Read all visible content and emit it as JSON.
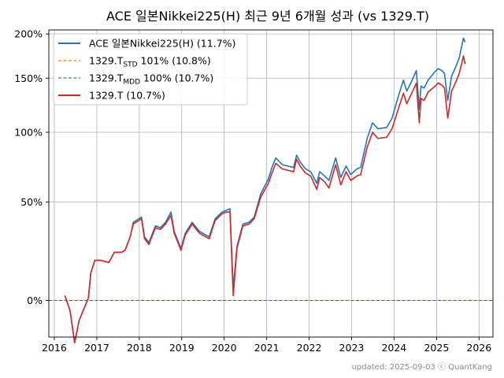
{
  "chart_data": {
    "type": "line",
    "title": "ACE 일본Nikkei225(H) 최근 9년 6개월 성과 (vs 1329.T)",
    "footer": "updated: 2025-09-03 ⓒ QuantKang",
    "y_scale": "log(1+r)",
    "ylim": [
      -0.14,
      2.05
    ],
    "xlim": [
      "2015-11-15",
      "2026-05-01"
    ],
    "y_ticks": [
      {
        "value": 0,
        "label": "0%"
      },
      {
        "value": 0.5,
        "label": "50%"
      },
      {
        "value": 1.0,
        "label": "100%"
      },
      {
        "value": 1.5,
        "label": "150%"
      },
      {
        "value": 2.0,
        "label": "200%"
      }
    ],
    "x_ticks": [
      {
        "value": "2016-01-01",
        "label": "2016"
      },
      {
        "value": "2017-01-01",
        "label": "2017"
      },
      {
        "value": "2018-01-01",
        "label": "2018"
      },
      {
        "value": "2019-01-01",
        "label": "2019"
      },
      {
        "value": "2020-01-01",
        "label": "2020"
      },
      {
        "value": "2021-01-01",
        "label": "2021"
      },
      {
        "value": "2022-01-01",
        "label": "2022"
      },
      {
        "value": "2023-01-01",
        "label": "2023"
      },
      {
        "value": "2024-01-01",
        "label": "2024"
      },
      {
        "value": "2025-01-01",
        "label": "2025"
      },
      {
        "value": "2026-01-01",
        "label": "2026"
      }
    ],
    "grid": true,
    "reference_line": {
      "value": 0,
      "color": "#d62728",
      "style": "dashed"
    },
    "legend_position": "top-left",
    "series": [
      {
        "name": "ACE 일본Nikkei225(H) (11.7%)",
        "color": "#1f77b4",
        "style": "solid",
        "x": [
          "2016-04-01",
          "2016-05-15",
          "2016-06-24",
          "2016-08-01",
          "2016-09-15",
          "2016-10-20",
          "2016-11-10",
          "2016-12-15",
          "2017-02-01",
          "2017-04-15",
          "2017-06-01",
          "2017-08-01",
          "2017-09-01",
          "2017-10-15",
          "2017-11-10",
          "2018-01-20",
          "2018-02-15",
          "2018-03-25",
          "2018-05-20",
          "2018-07-01",
          "2018-08-15",
          "2018-10-01",
          "2018-10-28",
          "2018-12-25",
          "2019-02-01",
          "2019-04-01",
          "2019-06-01",
          "2019-08-25",
          "2019-10-15",
          "2019-12-15",
          "2020-01-20",
          "2020-02-20",
          "2020-03-19",
          "2020-04-20",
          "2020-06-10",
          "2020-08-01",
          "2020-09-15",
          "2020-11-10",
          "2021-01-15",
          "2021-02-15",
          "2021-03-20",
          "2021-05-15",
          "2021-08-20",
          "2021-09-15",
          "2021-10-15",
          "2021-12-01",
          "2022-01-15",
          "2022-03-08",
          "2022-04-01",
          "2022-05-15",
          "2022-06-20",
          "2022-08-17",
          "2022-09-30",
          "2022-11-15",
          "2022-12-25",
          "2023-02-15",
          "2023-03-20",
          "2023-05-15",
          "2023-06-30",
          "2023-08-15",
          "2023-10-30",
          "2023-12-15",
          "2024-02-15",
          "2024-03-22",
          "2024-04-19",
          "2024-06-01",
          "2024-07-11",
          "2024-08-05",
          "2024-08-20",
          "2024-09-15",
          "2024-10-20",
          "2024-12-20",
          "2025-01-15",
          "2025-02-15",
          "2025-03-10",
          "2025-04-07",
          "2025-05-10",
          "2025-06-15",
          "2025-07-15",
          "2025-08-20",
          "2025-09-03"
        ],
        "values": [
          0.02,
          -0.04,
          -0.16,
          -0.08,
          -0.03,
          0.01,
          0.12,
          0.18,
          0.18,
          0.17,
          0.22,
          0.22,
          0.23,
          0.3,
          0.38,
          0.41,
          0.3,
          0.27,
          0.36,
          0.35,
          0.38,
          0.44,
          0.33,
          0.24,
          0.32,
          0.38,
          0.33,
          0.3,
          0.4,
          0.44,
          0.45,
          0.46,
          0.05,
          0.25,
          0.37,
          0.38,
          0.41,
          0.55,
          0.65,
          0.73,
          0.8,
          0.75,
          0.73,
          0.82,
          0.77,
          0.72,
          0.7,
          0.62,
          0.7,
          0.67,
          0.64,
          0.8,
          0.66,
          0.74,
          0.68,
          0.72,
          0.73,
          0.95,
          1.08,
          1.03,
          1.04,
          1.12,
          1.35,
          1.48,
          1.37,
          1.47,
          1.58,
          1.2,
          1.42,
          1.4,
          1.48,
          1.57,
          1.6,
          1.58,
          1.55,
          1.28,
          1.52,
          1.62,
          1.72,
          1.95,
          1.9
        ]
      },
      {
        "name": "1329.T_STD 101% (10.8%)",
        "color": "#ff7f0e",
        "style": "dashed",
        "x": [
          "2016-04-01",
          "2016-05-15",
          "2016-06-24",
          "2016-08-01",
          "2016-09-15",
          "2016-10-20",
          "2016-11-10",
          "2016-12-15",
          "2017-02-01",
          "2017-04-15",
          "2017-06-01",
          "2017-08-01",
          "2017-09-01",
          "2017-10-15",
          "2017-11-10",
          "2018-01-20",
          "2018-02-15",
          "2018-03-25",
          "2018-05-20",
          "2018-07-01",
          "2018-08-15",
          "2018-10-01",
          "2018-10-28",
          "2018-12-25",
          "2019-02-01",
          "2019-04-01",
          "2019-06-01",
          "2019-08-25",
          "2019-10-15",
          "2019-12-15",
          "2020-01-20",
          "2020-02-20",
          "2020-03-19",
          "2020-04-20",
          "2020-06-10",
          "2020-08-01",
          "2020-09-15",
          "2020-11-10",
          "2021-01-15",
          "2021-02-15",
          "2021-03-20",
          "2021-05-15",
          "2021-08-20",
          "2021-09-15",
          "2021-10-15",
          "2021-12-01",
          "2022-01-15",
          "2022-03-08",
          "2022-04-01",
          "2022-05-15",
          "2022-06-20",
          "2022-08-17",
          "2022-09-30",
          "2022-11-15",
          "2022-12-25",
          "2023-02-15",
          "2023-03-20",
          "2023-05-15",
          "2023-06-30",
          "2023-08-15",
          "2023-10-30",
          "2023-12-15",
          "2024-02-15",
          "2024-03-22",
          "2024-04-19",
          "2024-06-01",
          "2024-07-11",
          "2024-08-05",
          "2024-08-20",
          "2024-09-15",
          "2024-10-20",
          "2024-12-20",
          "2025-01-15",
          "2025-02-15",
          "2025-03-10",
          "2025-04-07",
          "2025-05-10",
          "2025-06-15",
          "2025-07-15",
          "2025-08-20",
          "2025-09-03"
        ],
        "values": [
          0.02,
          -0.04,
          -0.16,
          -0.08,
          -0.03,
          0.01,
          0.12,
          0.18,
          0.18,
          0.17,
          0.22,
          0.22,
          0.23,
          0.3,
          0.37,
          0.4,
          0.29,
          0.26,
          0.35,
          0.34,
          0.37,
          0.42,
          0.32,
          0.23,
          0.31,
          0.37,
          0.32,
          0.29,
          0.39,
          0.43,
          0.44,
          0.44,
          0.02,
          0.24,
          0.36,
          0.37,
          0.4,
          0.53,
          0.62,
          0.69,
          0.76,
          0.72,
          0.7,
          0.79,
          0.74,
          0.69,
          0.67,
          0.58,
          0.66,
          0.63,
          0.59,
          0.75,
          0.61,
          0.7,
          0.64,
          0.67,
          0.68,
          0.88,
          1.0,
          0.95,
          0.96,
          1.03,
          1.23,
          1.35,
          1.25,
          1.35,
          1.45,
          1.08,
          1.3,
          1.28,
          1.36,
          1.42,
          1.45,
          1.43,
          1.4,
          1.12,
          1.37,
          1.46,
          1.55,
          1.74,
          1.65
        ]
      },
      {
        "name": "1329.T_MDD 100% (10.7%)",
        "color": "#2ca02c",
        "style": "dashed",
        "x": [
          "2016-04-01",
          "2016-05-15",
          "2016-06-24",
          "2016-08-01",
          "2016-09-15",
          "2016-10-20",
          "2016-11-10",
          "2016-12-15",
          "2017-02-01",
          "2017-04-15",
          "2017-06-01",
          "2017-08-01",
          "2017-09-01",
          "2017-10-15",
          "2017-11-10",
          "2018-01-20",
          "2018-02-15",
          "2018-03-25",
          "2018-05-20",
          "2018-07-01",
          "2018-08-15",
          "2018-10-01",
          "2018-10-28",
          "2018-12-25",
          "2019-02-01",
          "2019-04-01",
          "2019-06-01",
          "2019-08-25",
          "2019-10-15",
          "2019-12-15",
          "2020-01-20",
          "2020-02-20",
          "2020-03-19",
          "2020-04-20",
          "2020-06-10",
          "2020-08-01",
          "2020-09-15",
          "2020-11-10",
          "2021-01-15",
          "2021-02-15",
          "2021-03-20",
          "2021-05-15",
          "2021-08-20",
          "2021-09-15",
          "2021-10-15",
          "2021-12-01",
          "2022-01-15",
          "2022-03-08",
          "2022-04-01",
          "2022-05-15",
          "2022-06-20",
          "2022-08-17",
          "2022-09-30",
          "2022-11-15",
          "2022-12-25",
          "2023-02-15",
          "2023-03-20",
          "2023-05-15",
          "2023-06-30",
          "2023-08-15",
          "2023-10-30",
          "2023-12-15",
          "2024-02-15",
          "2024-03-22",
          "2024-04-19",
          "2024-06-01",
          "2024-07-11",
          "2024-08-05",
          "2024-08-20",
          "2024-09-15",
          "2024-10-20",
          "2024-12-20",
          "2025-01-15",
          "2025-02-15",
          "2025-03-10",
          "2025-04-07",
          "2025-05-10",
          "2025-06-15",
          "2025-07-15",
          "2025-08-20",
          "2025-09-03"
        ],
        "values": [
          0.02,
          -0.04,
          -0.16,
          -0.08,
          -0.03,
          0.01,
          0.12,
          0.18,
          0.18,
          0.17,
          0.22,
          0.22,
          0.23,
          0.3,
          0.37,
          0.4,
          0.29,
          0.26,
          0.35,
          0.34,
          0.37,
          0.42,
          0.32,
          0.23,
          0.31,
          0.37,
          0.32,
          0.29,
          0.39,
          0.43,
          0.44,
          0.44,
          0.02,
          0.24,
          0.36,
          0.37,
          0.4,
          0.53,
          0.62,
          0.69,
          0.76,
          0.72,
          0.7,
          0.79,
          0.74,
          0.69,
          0.67,
          0.58,
          0.66,
          0.63,
          0.59,
          0.75,
          0.61,
          0.7,
          0.64,
          0.67,
          0.68,
          0.88,
          1.0,
          0.95,
          0.96,
          1.03,
          1.23,
          1.35,
          1.25,
          1.35,
          1.45,
          1.08,
          1.3,
          1.28,
          1.36,
          1.42,
          1.45,
          1.43,
          1.4,
          1.12,
          1.37,
          1.46,
          1.55,
          1.74,
          1.65
        ]
      },
      {
        "name": "1329.T (10.7%)",
        "color": "#d62728",
        "style": "solid",
        "x": [
          "2016-04-01",
          "2016-05-15",
          "2016-06-24",
          "2016-08-01",
          "2016-09-15",
          "2016-10-20",
          "2016-11-10",
          "2016-12-15",
          "2017-02-01",
          "2017-04-15",
          "2017-06-01",
          "2017-08-01",
          "2017-09-01",
          "2017-10-15",
          "2017-11-10",
          "2018-01-20",
          "2018-02-15",
          "2018-03-25",
          "2018-05-20",
          "2018-07-01",
          "2018-08-15",
          "2018-10-01",
          "2018-10-28",
          "2018-12-25",
          "2019-02-01",
          "2019-04-01",
          "2019-06-01",
          "2019-08-25",
          "2019-10-15",
          "2019-12-15",
          "2020-01-20",
          "2020-02-20",
          "2020-03-19",
          "2020-04-20",
          "2020-06-10",
          "2020-08-01",
          "2020-09-15",
          "2020-11-10",
          "2021-01-15",
          "2021-02-15",
          "2021-03-20",
          "2021-05-15",
          "2021-08-20",
          "2021-09-15",
          "2021-10-15",
          "2021-12-01",
          "2022-01-15",
          "2022-03-08",
          "2022-04-01",
          "2022-05-15",
          "2022-06-20",
          "2022-08-17",
          "2022-09-30",
          "2022-11-15",
          "2022-12-25",
          "2023-02-15",
          "2023-03-20",
          "2023-05-15",
          "2023-06-30",
          "2023-08-15",
          "2023-10-30",
          "2023-12-15",
          "2024-02-15",
          "2024-03-22",
          "2024-04-19",
          "2024-06-01",
          "2024-07-11",
          "2024-08-05",
          "2024-08-20",
          "2024-09-15",
          "2024-10-20",
          "2024-12-20",
          "2025-01-15",
          "2025-02-15",
          "2025-03-10",
          "2025-04-07",
          "2025-05-10",
          "2025-06-15",
          "2025-07-15",
          "2025-08-20",
          "2025-09-03"
        ],
        "values": [
          0.02,
          -0.04,
          -0.16,
          -0.08,
          -0.03,
          0.01,
          0.12,
          0.18,
          0.18,
          0.17,
          0.22,
          0.22,
          0.23,
          0.3,
          0.37,
          0.4,
          0.29,
          0.26,
          0.35,
          0.34,
          0.37,
          0.42,
          0.32,
          0.23,
          0.31,
          0.37,
          0.32,
          0.29,
          0.39,
          0.43,
          0.44,
          0.44,
          0.02,
          0.24,
          0.36,
          0.37,
          0.4,
          0.53,
          0.62,
          0.69,
          0.76,
          0.72,
          0.7,
          0.79,
          0.74,
          0.69,
          0.67,
          0.58,
          0.66,
          0.63,
          0.59,
          0.75,
          0.61,
          0.7,
          0.64,
          0.67,
          0.68,
          0.88,
          1.0,
          0.95,
          0.96,
          1.03,
          1.23,
          1.35,
          1.25,
          1.35,
          1.45,
          1.08,
          1.3,
          1.28,
          1.36,
          1.42,
          1.45,
          1.43,
          1.4,
          1.12,
          1.37,
          1.46,
          1.55,
          1.74,
          1.65
        ]
      }
    ],
    "legend": [
      {
        "prefix": "ACE 일본Nikkei225(H) (11.7%)",
        "sub": "",
        "suffix": "",
        "color": "#1f77b4",
        "style": "solid"
      },
      {
        "prefix": "1329.T",
        "sub": "STD",
        "suffix": " 101% (10.8%)",
        "color": "#ff7f0e",
        "style": "dashed"
      },
      {
        "prefix": "1329.T",
        "sub": "MDD",
        "suffix": " 100% (10.7%)",
        "color": "#2ca02c",
        "style": "dashed"
      },
      {
        "prefix": "1329.T (10.7%)",
        "sub": "",
        "suffix": "",
        "color": "#d62728",
        "style": "solid"
      }
    ]
  }
}
